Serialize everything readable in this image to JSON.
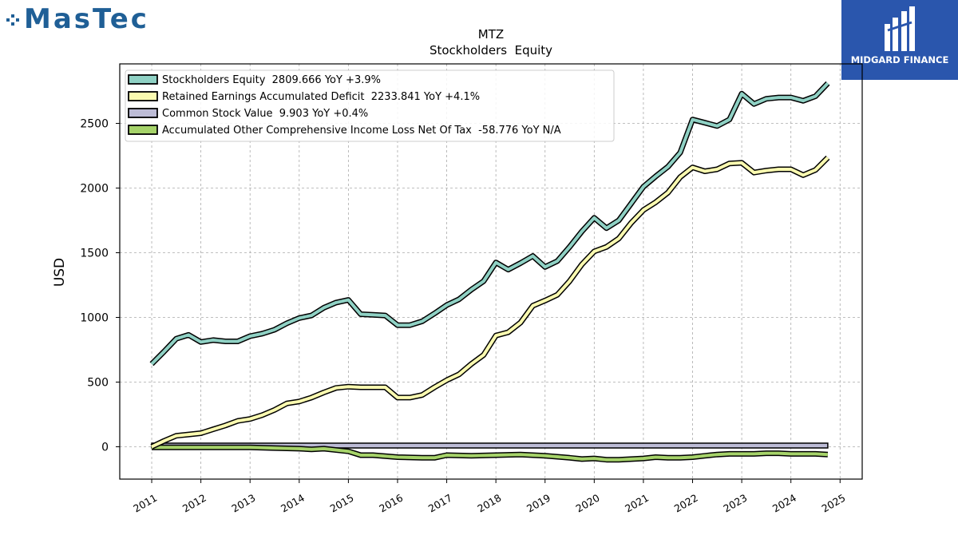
{
  "branding": {
    "company_logo_text": "MasTec",
    "publisher_logo_text": "MIDGARD FINANCE"
  },
  "colors": {
    "equity": "#8fd1c4",
    "retained": "#fafab0",
    "common": "#bdbcd6",
    "aoci": "#a6d36a",
    "outline": "#000000"
  },
  "chart_data": {
    "type": "line",
    "title": "MTZ",
    "subtitle": "Stockholders  Equity",
    "xlabel": "",
    "ylabel": "USD",
    "ylim": [
      -250,
      2960
    ],
    "xlim": [
      2010.35,
      2025.45
    ],
    "yticks": [
      0,
      500,
      1000,
      1500,
      2000,
      2500
    ],
    "xticks": [
      "2011",
      "2012",
      "2013",
      "2014",
      "2015",
      "2016",
      "2017",
      "2018",
      "2019",
      "2020",
      "2021",
      "2022",
      "2023",
      "2024",
      "2025"
    ],
    "grid": true,
    "legend_position": "top-left",
    "series": [
      {
        "name": "Stockholders Equity  2809.666 YoY +3.9%",
        "color_key": "equity",
        "x": [
          2011.0,
          2011.25,
          2011.5,
          2011.75,
          2012.0,
          2012.25,
          2012.5,
          2012.75,
          2013.0,
          2013.25,
          2013.5,
          2013.75,
          2014.0,
          2014.25,
          2014.5,
          2014.75,
          2015.0,
          2015.25,
          2015.5,
          2015.75,
          2016.0,
          2016.25,
          2016.5,
          2016.75,
          2017.0,
          2017.25,
          2017.5,
          2017.75,
          2018.0,
          2018.25,
          2018.5,
          2018.75,
          2019.0,
          2019.25,
          2019.5,
          2019.75,
          2020.0,
          2020.25,
          2020.5,
          2020.75,
          2021.0,
          2021.25,
          2021.5,
          2021.75,
          2022.0,
          2022.25,
          2022.5,
          2022.75,
          2023.0,
          2023.25,
          2023.5,
          2023.75,
          2024.0,
          2024.25,
          2024.5,
          2024.75
        ],
        "values": [
          640,
          735,
          835,
          865,
          810,
          825,
          815,
          815,
          855,
          875,
          905,
          955,
          995,
          1015,
          1075,
          1115,
          1135,
          1025,
          1020,
          1015,
          940,
          940,
          970,
          1030,
          1095,
          1140,
          1215,
          1280,
          1425,
          1370,
          1420,
          1475,
          1390,
          1435,
          1545,
          1665,
          1770,
          1690,
          1750,
          1880,
          2010,
          2090,
          2165,
          2275,
          2530,
          2505,
          2480,
          2530,
          2730,
          2650,
          2690,
          2700,
          2700,
          2675,
          2710,
          2810
        ]
      },
      {
        "name": "Retained Earnings Accumulated Deficit  2233.841 YoY +4.1%",
        "color_key": "retained",
        "x": [
          2011.0,
          2011.25,
          2011.5,
          2011.75,
          2012.0,
          2012.25,
          2012.5,
          2012.75,
          2013.0,
          2013.25,
          2013.5,
          2013.75,
          2014.0,
          2014.25,
          2014.5,
          2014.75,
          2015.0,
          2015.25,
          2015.5,
          2015.75,
          2016.0,
          2016.25,
          2016.5,
          2016.75,
          2017.0,
          2017.25,
          2017.5,
          2017.75,
          2018.0,
          2018.25,
          2018.5,
          2018.75,
          2019.0,
          2019.25,
          2019.5,
          2019.75,
          2020.0,
          2020.25,
          2020.5,
          2020.75,
          2021.0,
          2021.25,
          2021.5,
          2021.75,
          2022.0,
          2022.25,
          2022.5,
          2022.75,
          2023.0,
          2023.25,
          2023.5,
          2023.75,
          2024.0,
          2024.25,
          2024.5,
          2024.75
        ],
        "values": [
          0,
          45,
          85,
          95,
          105,
          135,
          165,
          200,
          215,
          245,
          285,
          335,
          350,
          380,
          420,
          455,
          465,
          460,
          460,
          460,
          380,
          380,
          400,
          460,
          515,
          560,
          640,
          710,
          860,
          885,
          960,
          1090,
          1130,
          1175,
          1280,
          1410,
          1510,
          1545,
          1610,
          1730,
          1830,
          1890,
          1965,
          2085,
          2160,
          2130,
          2145,
          2190,
          2195,
          2120,
          2135,
          2145,
          2145,
          2100,
          2140,
          2235
        ]
      },
      {
        "name": "Common Stock Value  9.903 YoY +0.4%",
        "color_key": "common",
        "x": [
          2011.0,
          2024.75
        ],
        "values": [
          9.9,
          9.9
        ]
      },
      {
        "name": "Accumulated Other Comprehensive Income Loss Net Of Tax  -58.776 YoY N/A",
        "color_key": "aoci",
        "x": [
          2011.0,
          2011.5,
          2012.0,
          2012.5,
          2013.0,
          2013.5,
          2014.0,
          2014.25,
          2014.5,
          2015.0,
          2015.25,
          2015.5,
          2016.0,
          2016.5,
          2016.75,
          2017.0,
          2017.5,
          2018.0,
          2018.5,
          2019.0,
          2019.5,
          2019.75,
          2020.0,
          2020.25,
          2020.5,
          2021.0,
          2021.25,
          2021.5,
          2021.75,
          2022.0,
          2022.25,
          2022.5,
          2022.75,
          2023.0,
          2023.25,
          2023.5,
          2023.75,
          2024.0,
          2024.25,
          2024.5,
          2024.75
        ],
        "values": [
          -5,
          -5,
          -5,
          -5,
          -5,
          -10,
          -15,
          -20,
          -15,
          -35,
          -65,
          -65,
          -80,
          -85,
          -85,
          -65,
          -70,
          -65,
          -60,
          -70,
          -85,
          -95,
          -90,
          -100,
          -100,
          -90,
          -80,
          -85,
          -85,
          -80,
          -70,
          -60,
          -55,
          -55,
          -55,
          -50,
          -50,
          -55,
          -55,
          -55,
          -60
        ]
      }
    ]
  }
}
